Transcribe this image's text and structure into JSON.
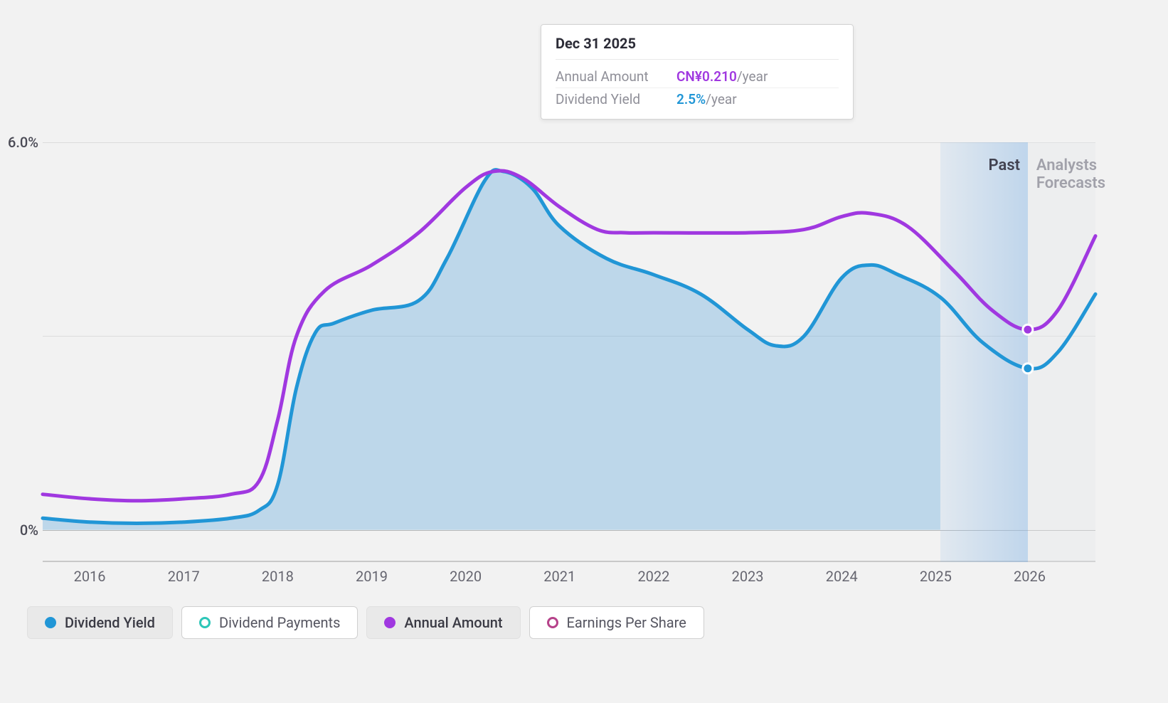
{
  "chart": {
    "type": "line-area",
    "background_color": "#f2f2f2",
    "grid_color": "#dcdcdc",
    "zero_line_color": "#b8b8b8",
    "axis_label_color": "#666670",
    "y_label_color": "#4a4a55",
    "y_axis": {
      "min": -0.5,
      "max": 6.0,
      "ticks": [
        {
          "value": 0,
          "label": "0%"
        },
        {
          "value": 6,
          "label": "6.0%"
        }
      ],
      "midline_value": 3.0
    },
    "x_axis": {
      "min": 2015.5,
      "max": 2026.7,
      "ticks": [
        2016,
        2017,
        2018,
        2019,
        2020,
        2021,
        2022,
        2023,
        2024,
        2025,
        2026
      ]
    },
    "forecast_boundary_x": 2025.05,
    "highlight_x": 2025.98,
    "highlight_band_color_start": "rgba(150,190,230,0.18)",
    "highlight_band_color_end": "rgba(150,190,230,0.55)",
    "forecast_band_color": "rgba(230,232,236,0.35)",
    "past_label": "Past",
    "forecast_label": "Analysts Forecasts",
    "series": {
      "dividend_yield": {
        "label": "Dividend Yield",
        "color": "#2196d6",
        "fill_color": "rgba(103,170,220,0.38)",
        "line_width": 5,
        "points": [
          {
            "x": 2015.5,
            "y": 0.18
          },
          {
            "x": 2016.0,
            "y": 0.12
          },
          {
            "x": 2016.5,
            "y": 0.1
          },
          {
            "x": 2017.0,
            "y": 0.12
          },
          {
            "x": 2017.5,
            "y": 0.18
          },
          {
            "x": 2017.8,
            "y": 0.3
          },
          {
            "x": 2018.0,
            "y": 0.7
          },
          {
            "x": 2018.2,
            "y": 2.2
          },
          {
            "x": 2018.4,
            "y": 3.05
          },
          {
            "x": 2018.6,
            "y": 3.2
          },
          {
            "x": 2019.0,
            "y": 3.4
          },
          {
            "x": 2019.5,
            "y": 3.55
          },
          {
            "x": 2019.8,
            "y": 4.2
          },
          {
            "x": 2020.2,
            "y": 5.4
          },
          {
            "x": 2020.4,
            "y": 5.55
          },
          {
            "x": 2020.7,
            "y": 5.3
          },
          {
            "x": 2021.0,
            "y": 4.7
          },
          {
            "x": 2021.5,
            "y": 4.2
          },
          {
            "x": 2022.0,
            "y": 3.95
          },
          {
            "x": 2022.5,
            "y": 3.65
          },
          {
            "x": 2023.0,
            "y": 3.1
          },
          {
            "x": 2023.3,
            "y": 2.85
          },
          {
            "x": 2023.6,
            "y": 3.0
          },
          {
            "x": 2024.0,
            "y": 3.9
          },
          {
            "x": 2024.3,
            "y": 4.1
          },
          {
            "x": 2024.6,
            "y": 3.95
          },
          {
            "x": 2025.05,
            "y": 3.6
          },
          {
            "x": 2025.5,
            "y": 2.9
          },
          {
            "x": 2025.98,
            "y": 2.5
          },
          {
            "x": 2026.3,
            "y": 2.75
          },
          {
            "x": 2026.7,
            "y": 3.65
          }
        ],
        "marker_at": {
          "x": 2025.98,
          "y": 2.5
        }
      },
      "annual_amount": {
        "label": "Annual Amount",
        "color": "#a038e0",
        "line_width": 5,
        "points": [
          {
            "x": 2015.5,
            "y": 0.55
          },
          {
            "x": 2016.0,
            "y": 0.48
          },
          {
            "x": 2016.5,
            "y": 0.45
          },
          {
            "x": 2017.0,
            "y": 0.48
          },
          {
            "x": 2017.5,
            "y": 0.55
          },
          {
            "x": 2017.8,
            "y": 0.75
          },
          {
            "x": 2018.0,
            "y": 1.7
          },
          {
            "x": 2018.2,
            "y": 3.0
          },
          {
            "x": 2018.5,
            "y": 3.7
          },
          {
            "x": 2019.0,
            "y": 4.1
          },
          {
            "x": 2019.5,
            "y": 4.6
          },
          {
            "x": 2020.0,
            "y": 5.3
          },
          {
            "x": 2020.3,
            "y": 5.55
          },
          {
            "x": 2020.6,
            "y": 5.45
          },
          {
            "x": 2021.0,
            "y": 5.0
          },
          {
            "x": 2021.4,
            "y": 4.65
          },
          {
            "x": 2021.7,
            "y": 4.6
          },
          {
            "x": 2022.0,
            "y": 4.6
          },
          {
            "x": 2023.0,
            "y": 4.6
          },
          {
            "x": 2023.6,
            "y": 4.65
          },
          {
            "x": 2024.0,
            "y": 4.85
          },
          {
            "x": 2024.3,
            "y": 4.9
          },
          {
            "x": 2024.7,
            "y": 4.7
          },
          {
            "x": 2025.2,
            "y": 4.0
          },
          {
            "x": 2025.6,
            "y": 3.4
          },
          {
            "x": 2025.98,
            "y": 3.1
          },
          {
            "x": 2026.3,
            "y": 3.4
          },
          {
            "x": 2026.7,
            "y": 4.55
          }
        ],
        "marker_at": {
          "x": 2025.98,
          "y": 3.1
        }
      }
    }
  },
  "tooltip": {
    "title": "Dec 31 2025",
    "rows": [
      {
        "label": "Annual Amount",
        "value": "CN¥0.210",
        "unit": "/year",
        "value_color": "#a038e0"
      },
      {
        "label": "Dividend Yield",
        "value": "2.5%",
        "unit": "/year",
        "value_color": "#2196d6"
      }
    ]
  },
  "legend": [
    {
      "label": "Dividend Yield",
      "marker": "filled",
      "color": "#2196d6",
      "active": true
    },
    {
      "label": "Dividend Payments",
      "marker": "open",
      "color": "#2dc6b8",
      "active": false
    },
    {
      "label": "Annual Amount",
      "marker": "filled",
      "color": "#a038e0",
      "active": true
    },
    {
      "label": "Earnings Per Share",
      "marker": "open",
      "color": "#b6428a",
      "active": false
    }
  ]
}
